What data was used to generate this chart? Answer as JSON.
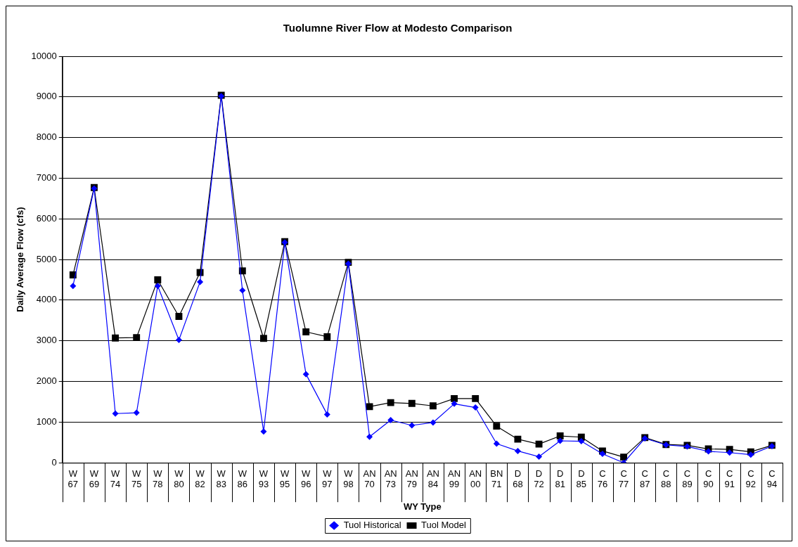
{
  "chart_data": {
    "type": "line",
    "title": "Tuolumne River Flow at Modesto Comparison",
    "xlabel": "WY Type",
    "ylabel": "Daily Average Flow (cfs)",
    "categories": [
      "W\n67",
      "W\n69",
      "W\n74",
      "W\n75",
      "W\n78",
      "W\n80",
      "W\n82",
      "W\n83",
      "W\n86",
      "W\n93",
      "W\n95",
      "W\n96",
      "W\n97",
      "W\n98",
      "AN\n70",
      "AN\n73",
      "AN\n79",
      "AN\n84",
      "AN\n99",
      "AN\n00",
      "BN\n71",
      "D\n68",
      "D\n72",
      "D\n81",
      "D\n85",
      "C\n76",
      "C\n77",
      "C\n87",
      "C\n88",
      "C\n89",
      "C\n90",
      "C\n91",
      "C\n92",
      "C\n94"
    ],
    "series": [
      {
        "name": "Tuol Historical",
        "color": "#0000ff",
        "marker": "diamond",
        "values": [
          4350,
          6750,
          1210,
          1230,
          4350,
          3020,
          4450,
          9020,
          4240,
          770,
          5420,
          2180,
          1190,
          4900,
          640,
          1050,
          920,
          990,
          1450,
          1360,
          470,
          290,
          150,
          540,
          530,
          220,
          0,
          600,
          440,
          400,
          280,
          250,
          200,
          410
        ]
      },
      {
        "name": "Tuol Model",
        "color": "#000000",
        "marker": "square",
        "values": [
          4620,
          6770,
          3070,
          3080,
          4500,
          3600,
          4680,
          9040,
          4720,
          3060,
          5440,
          3220,
          3100,
          4930,
          1380,
          1480,
          1460,
          1400,
          1580,
          1580,
          900,
          580,
          460,
          660,
          630,
          290,
          140,
          620,
          450,
          430,
          340,
          330,
          270,
          430
        ]
      }
    ],
    "ylim": [
      0,
      10000
    ],
    "yticks": [
      0,
      1000,
      2000,
      3000,
      4000,
      5000,
      6000,
      7000,
      8000,
      9000,
      10000
    ],
    "grid": "y",
    "legend": "bottom",
    "line_style": "solid"
  }
}
